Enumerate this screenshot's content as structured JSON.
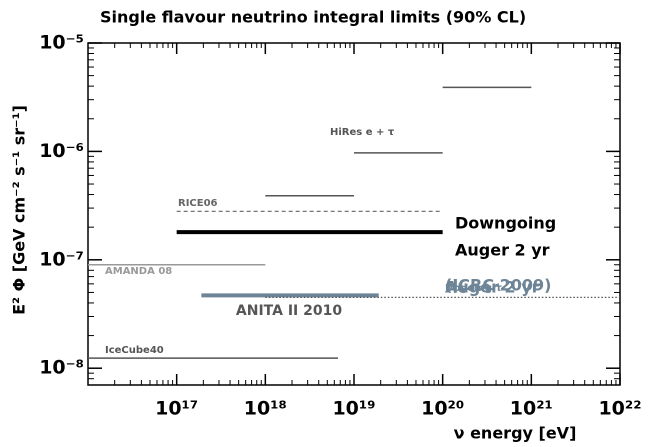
{
  "chart_data": {
    "type": "segments",
    "title": "Single flavour neutrino integral limits (90% CL)",
    "x_label": "ν energy [eV]",
    "y_label": "E² Φ [GeV cm⁻² s⁻¹ sr⁻¹]",
    "xscale": "log",
    "yscale": "log",
    "xlim": [
      1e+16,
      1e+22
    ],
    "ylim": [
      7e-09,
      1e-05
    ],
    "xticks": [
      {
        "value": 1e+17,
        "label": "10¹⁷"
      },
      {
        "value": 1e+18,
        "label": "10¹⁸"
      },
      {
        "value": 1e+19,
        "label": "10¹⁹"
      },
      {
        "value": 1e+20,
        "label": "10²⁰"
      },
      {
        "value": 1e+21,
        "label": "10²¹"
      },
      {
        "value": 1e+22,
        "label": "10²²"
      }
    ],
    "yticks": [
      {
        "value": 1e-08,
        "label": "10⁻⁸"
      },
      {
        "value": 1e-07,
        "label": "10⁻⁷"
      },
      {
        "value": 1e-06,
        "label": "10⁻⁶"
      },
      {
        "value": 1e-05,
        "label": "10⁻⁵"
      }
    ],
    "series": [
      {
        "label": [
          "IceCube40"
        ],
        "color": "#555555",
        "style": "solid",
        "width": 1.5,
        "segments": [
          {
            "x": [
              1e+16,
              6.6e+18
            ],
            "value": 1.24e-08
          }
        ]
      },
      {
        "label": [
          "AMANDA 08"
        ],
        "color": "#999999",
        "style": "solid",
        "width": 1.5,
        "segments": [
          {
            "x": [
              1e+16,
              1e+18
            ],
            "value": 9e-08
          }
        ]
      },
      {
        "label": [
          "RICE06"
        ],
        "color": "#666666",
        "style": "dashed",
        "width": 1.2,
        "segments": [
          {
            "x": [
              1e+17,
              1e+20
            ],
            "value": 2.8e-07
          }
        ]
      },
      {
        "label": [
          "HiRes e + τ"
        ],
        "color": "#555555",
        "style": "solid",
        "width": 1.5,
        "segments": [
          {
            "x": [
              1e+18,
              1e+19
            ],
            "value": 3.9e-07
          },
          {
            "x": [
              1e+19,
              1e+20
            ],
            "value": 9.7e-07
          },
          {
            "x": [
              1e+20,
              1e+21
            ],
            "value": 3.9e-06
          }
        ]
      },
      {
        "label": [
          "Downgoing",
          "Auger 2 yr"
        ],
        "color": "#000000",
        "style": "solid",
        "width": 4,
        "segments": [
          {
            "x": [
              1e+17,
              1e+20
            ],
            "value": 1.8e-07
          }
        ]
      },
      {
        "label": [
          "Upgoing τ",
          "Auger 2 yr",
          "(ICRC 2009)"
        ],
        "color": "#6d8596",
        "style": "solid",
        "width": 4,
        "segments": [
          {
            "x": [
              1.9e+17,
              1.9e+19
            ],
            "value": 4.7e-08
          }
        ]
      },
      {
        "label": [
          "ANITA II 2010"
        ],
        "color": "#555555",
        "style": "dotted",
        "width": 1.2,
        "segments": [
          {
            "x": [
              1e+18,
              1e+22
            ],
            "value": 4.5e-08
          }
        ]
      }
    ]
  }
}
